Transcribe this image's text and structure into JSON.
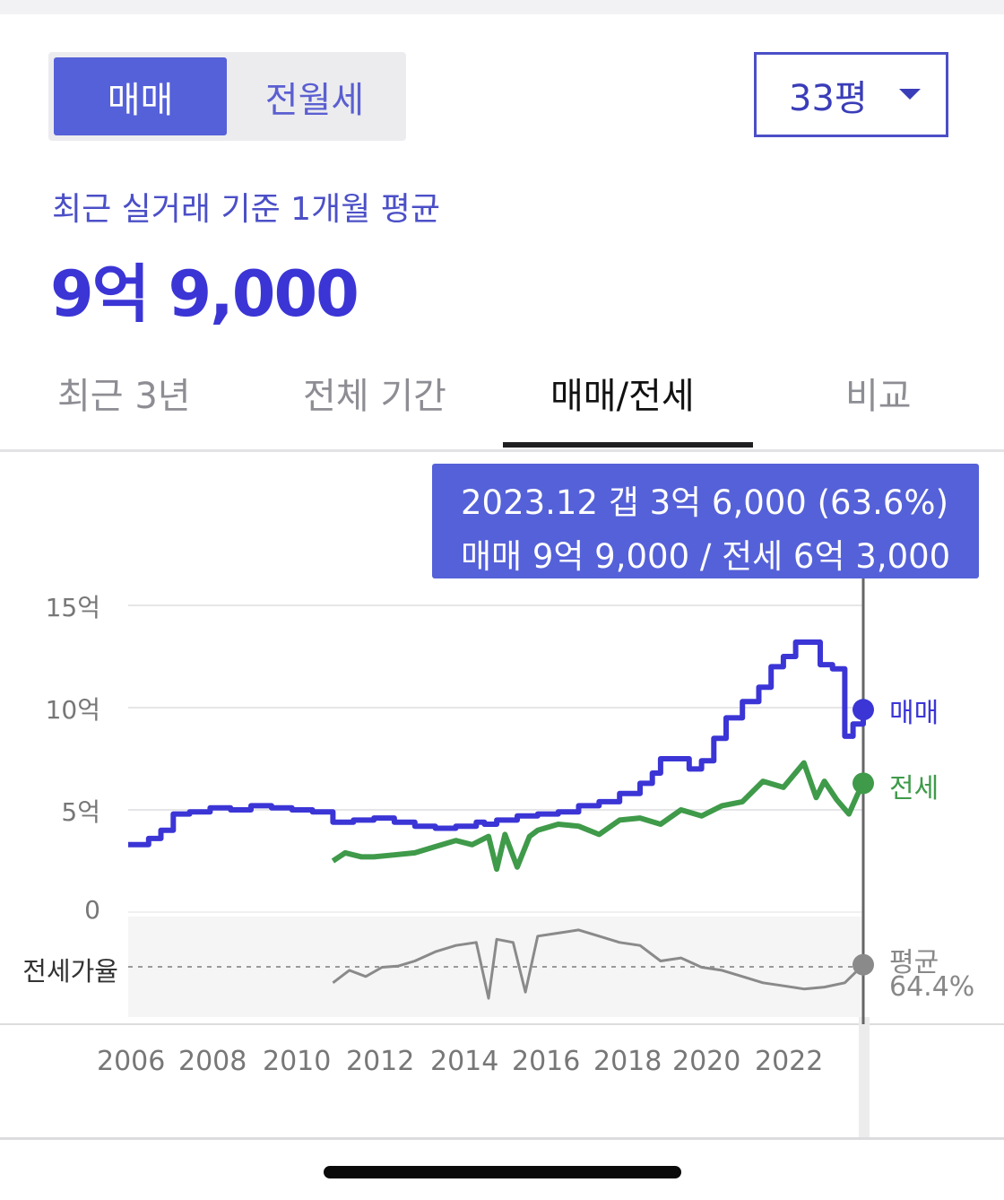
{
  "segment": {
    "options": [
      "매매",
      "전월세"
    ],
    "selected": "매매"
  },
  "area_select": {
    "value": "33평"
  },
  "summary": {
    "subtitle": "최근 실거래 기준 1개월 평균",
    "price": "9억 9,000"
  },
  "tabs": [
    {
      "label": "최근 3년"
    },
    {
      "label": "전체 기간"
    },
    {
      "label": "매매/전세",
      "active": true
    },
    {
      "label": "비교"
    }
  ],
  "tooltip": {
    "line1": "2023.12  갭 3억 6,000 (63.6%)",
    "line2": "매매 9억 9,000 / 전세 6억 3,000"
  },
  "colors": {
    "accent": "#5561d8",
    "sale": "#3b35d6",
    "jeonse": "#3f9a4a",
    "ratio": "#8a8a8a"
  },
  "chart_data": {
    "type": "line",
    "yticks": [
      "15억",
      "10억",
      "5억",
      "0"
    ],
    "ylim": [
      0,
      15
    ],
    "yunit": "억",
    "ratio_label": "전세가율",
    "xticks": [
      "2006",
      "2008",
      "2010",
      "2012",
      "2014",
      "2016",
      "2018",
      "2020",
      "2022"
    ],
    "xlim": [
      2006.0,
      2024.2
    ],
    "cursor_x": 2023.95,
    "series": [
      {
        "name": "매매",
        "end_label": "매매",
        "points": [
          [
            2006.0,
            3.3
          ],
          [
            2006.5,
            3.6
          ],
          [
            2006.8,
            4.0
          ],
          [
            2007.1,
            4.8
          ],
          [
            2007.5,
            4.9
          ],
          [
            2008.0,
            5.1
          ],
          [
            2008.5,
            5.0
          ],
          [
            2009.0,
            5.2
          ],
          [
            2009.5,
            5.1
          ],
          [
            2010.0,
            5.0
          ],
          [
            2010.5,
            4.9
          ],
          [
            2011.0,
            4.4
          ],
          [
            2011.5,
            4.5
          ],
          [
            2012.0,
            4.6
          ],
          [
            2012.5,
            4.4
          ],
          [
            2013.0,
            4.2
          ],
          [
            2013.5,
            4.1
          ],
          [
            2014.0,
            4.2
          ],
          [
            2014.5,
            4.4
          ],
          [
            2014.7,
            4.3
          ],
          [
            2015.0,
            4.5
          ],
          [
            2015.5,
            4.7
          ],
          [
            2016.0,
            4.8
          ],
          [
            2016.5,
            4.9
          ],
          [
            2017.0,
            5.2
          ],
          [
            2017.5,
            5.4
          ],
          [
            2018.0,
            5.8
          ],
          [
            2018.5,
            6.3
          ],
          [
            2018.8,
            6.8
          ],
          [
            2019.0,
            7.5
          ],
          [
            2019.5,
            7.5
          ],
          [
            2019.7,
            7.0
          ],
          [
            2020.0,
            7.4
          ],
          [
            2020.3,
            8.5
          ],
          [
            2020.6,
            9.5
          ],
          [
            2021.0,
            10.3
          ],
          [
            2021.4,
            11.0
          ],
          [
            2021.7,
            12.0
          ],
          [
            2022.0,
            12.5
          ],
          [
            2022.3,
            13.2
          ],
          [
            2022.6,
            13.2
          ],
          [
            2022.9,
            12.1
          ],
          [
            2023.2,
            11.9
          ],
          [
            2023.5,
            8.6
          ],
          [
            2023.7,
            9.2
          ],
          [
            2023.95,
            9.9
          ]
        ]
      },
      {
        "name": "전세",
        "end_label": "전세",
        "points": [
          [
            2011.0,
            2.5
          ],
          [
            2011.3,
            2.9
          ],
          [
            2011.7,
            2.7
          ],
          [
            2012.0,
            2.7
          ],
          [
            2012.5,
            2.8
          ],
          [
            2013.0,
            2.9
          ],
          [
            2013.5,
            3.2
          ],
          [
            2014.0,
            3.5
          ],
          [
            2014.4,
            3.3
          ],
          [
            2014.8,
            3.7
          ],
          [
            2015.0,
            2.1
          ],
          [
            2015.2,
            3.8
          ],
          [
            2015.5,
            2.2
          ],
          [
            2015.8,
            3.7
          ],
          [
            2016.0,
            4.0
          ],
          [
            2016.5,
            4.3
          ],
          [
            2017.0,
            4.2
          ],
          [
            2017.5,
            3.8
          ],
          [
            2018.0,
            4.5
          ],
          [
            2018.5,
            4.6
          ],
          [
            2019.0,
            4.3
          ],
          [
            2019.5,
            5.0
          ],
          [
            2020.0,
            4.7
          ],
          [
            2020.5,
            5.2
          ],
          [
            2021.0,
            5.4
          ],
          [
            2021.5,
            6.4
          ],
          [
            2022.0,
            6.1
          ],
          [
            2022.5,
            7.3
          ],
          [
            2022.8,
            5.6
          ],
          [
            2023.0,
            6.4
          ],
          [
            2023.3,
            5.5
          ],
          [
            2023.6,
            4.8
          ],
          [
            2023.8,
            5.7
          ],
          [
            2023.95,
            6.3
          ]
        ]
      }
    ],
    "ratio_series": {
      "name": "전세가율",
      "end_label": "평균",
      "end_value": "64.4%",
      "points": [
        [
          2011.0,
          0.35
        ],
        [
          2011.4,
          0.55
        ],
        [
          2011.8,
          0.45
        ],
        [
          2012.2,
          0.6
        ],
        [
          2012.6,
          0.62
        ],
        [
          2013.0,
          0.7
        ],
        [
          2013.5,
          0.85
        ],
        [
          2014.0,
          0.95
        ],
        [
          2014.5,
          1.0
        ],
        [
          2014.8,
          0.1
        ],
        [
          2015.0,
          1.05
        ],
        [
          2015.4,
          1.0
        ],
        [
          2015.7,
          0.2
        ],
        [
          2016.0,
          1.1
        ],
        [
          2016.5,
          1.15
        ],
        [
          2017.0,
          1.2
        ],
        [
          2017.5,
          1.1
        ],
        [
          2018.0,
          1.0
        ],
        [
          2018.5,
          0.95
        ],
        [
          2019.0,
          0.7
        ],
        [
          2019.5,
          0.75
        ],
        [
          2020.0,
          0.6
        ],
        [
          2020.5,
          0.55
        ],
        [
          2021.0,
          0.45
        ],
        [
          2021.5,
          0.35
        ],
        [
          2022.0,
          0.3
        ],
        [
          2022.5,
          0.25
        ],
        [
          2023.0,
          0.28
        ],
        [
          2023.5,
          0.35
        ],
        [
          2023.95,
          0.64
        ]
      ]
    }
  }
}
